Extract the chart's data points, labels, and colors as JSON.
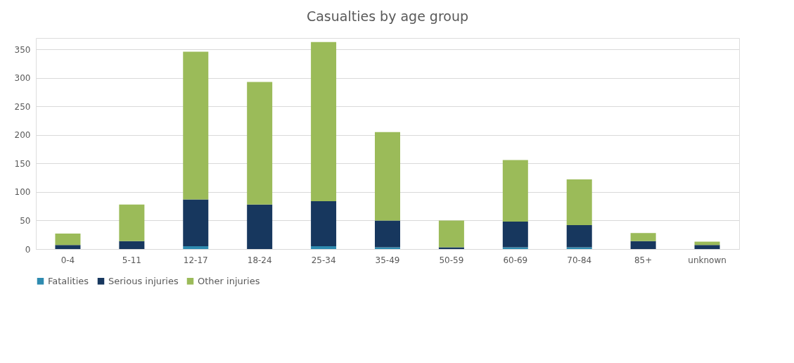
{
  "chart_data": {
    "type": "bar",
    "title": "Casualties by age group",
    "stacked": true,
    "categories": [
      "0-4",
      "5-11",
      "12-17",
      "18-24",
      "25-34",
      "35-49",
      "50-59",
      "60-69",
      "70-84",
      "85+",
      "unknown"
    ],
    "series": [
      {
        "name": "Fatalities",
        "color": "#2e8bb0",
        "values": [
          0,
          0,
          5,
          0,
          5,
          3,
          0,
          3,
          3,
          0,
          0
        ]
      },
      {
        "name": "Serious injuries",
        "color": "#17375e",
        "values": [
          7,
          14,
          82,
          78,
          79,
          47,
          3,
          45,
          39,
          14,
          7
        ]
      },
      {
        "name": "Other injuries",
        "color": "#9bbb59",
        "values": [
          20,
          64,
          259,
          215,
          279,
          155,
          47,
          108,
          80,
          14,
          6
        ]
      }
    ],
    "ylim": [
      0,
      370
    ],
    "yticks": [
      0,
      50,
      100,
      150,
      200,
      250,
      300,
      350
    ],
    "grid": "y",
    "legend": "bottom"
  }
}
